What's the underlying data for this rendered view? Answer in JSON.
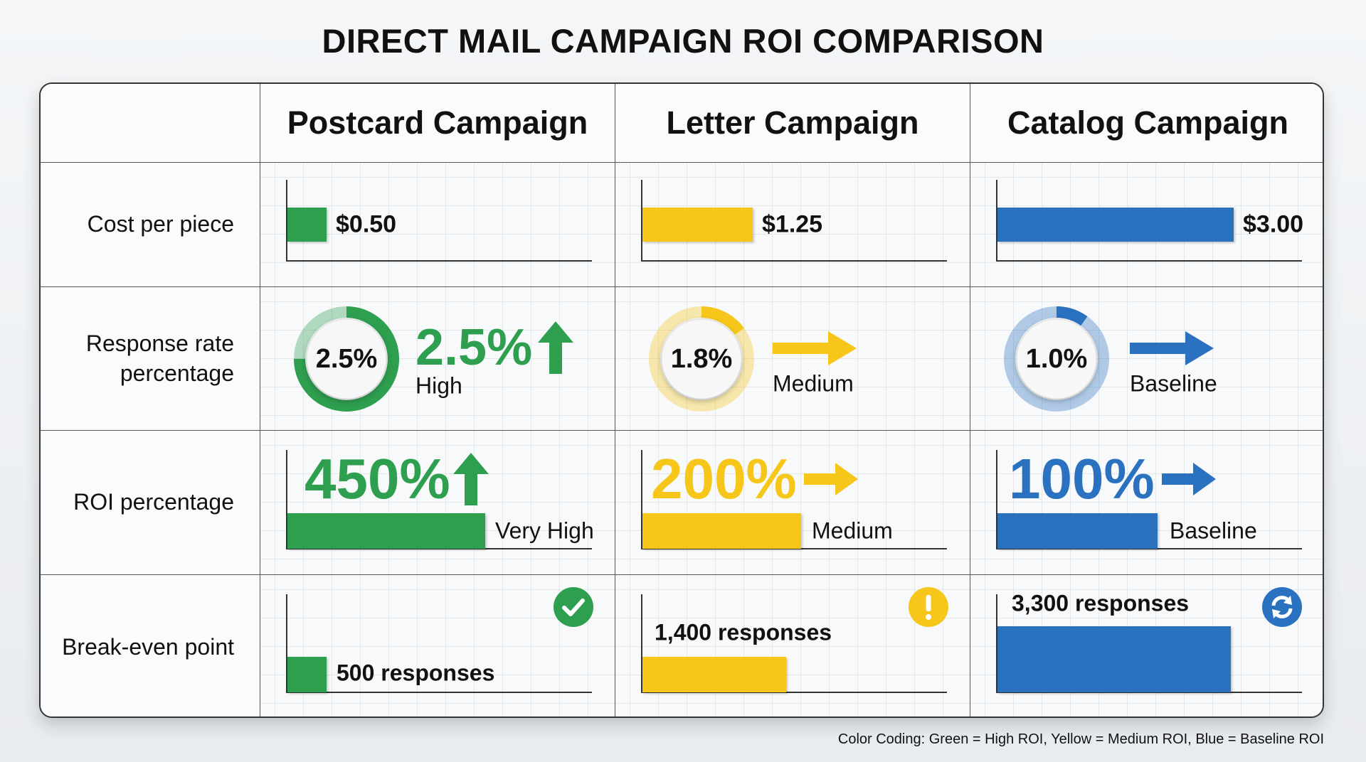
{
  "title": "DIRECT MAIL CAMPAIGN ROI COMPARISON",
  "columns": [
    "Postcard Campaign",
    "Letter Campaign",
    "Catalog Campaign"
  ],
  "rows": [
    "Cost per piece",
    "Response rate percentage",
    "ROI percentage",
    "Break-even point"
  ],
  "colors": {
    "high": "#2e9e4f",
    "medium": "#f6c61a",
    "baseline": "#2a72c0"
  },
  "chart_data": {
    "type": "table",
    "title": "DIRECT MAIL CAMPAIGN ROI COMPARISON",
    "categories": [
      "Postcard Campaign",
      "Letter Campaign",
      "Catalog Campaign"
    ],
    "series": [
      {
        "name": "Cost per piece",
        "values": [
          0.5,
          1.25,
          3.0
        ],
        "labels": [
          "$0.50",
          "$1.25",
          "$3.00"
        ]
      },
      {
        "name": "Response rate percentage",
        "values": [
          2.5,
          1.8,
          1.0
        ],
        "labels": [
          "2.5%",
          "1.8%",
          "1.0%"
        ],
        "ratings": [
          "High",
          "Medium",
          "Baseline"
        ],
        "ring_fill": [
          0.75,
          0.15,
          0.1
        ],
        "big_label": "2.5%",
        "trend": [
          "up",
          "right",
          "right"
        ]
      },
      {
        "name": "ROI percentage",
        "values": [
          450,
          200,
          100
        ],
        "labels": [
          "450%",
          "200%",
          "100%"
        ],
        "ratings": [
          "Very High",
          "Medium",
          "Baseline"
        ],
        "trend": [
          "up",
          "right",
          "right"
        ]
      },
      {
        "name": "Break-even point",
        "values": [
          500,
          1400,
          3300
        ],
        "labels": [
          "500 responses",
          "1,400 responses",
          "3,300 responses"
        ],
        "icons": [
          "check-circle-icon",
          "exclamation-circle-icon",
          "refresh-circle-icon"
        ]
      }
    ]
  },
  "footnote": "Color Coding: Green = High ROI, Yellow = Medium ROI, Blue = Baseline ROI"
}
